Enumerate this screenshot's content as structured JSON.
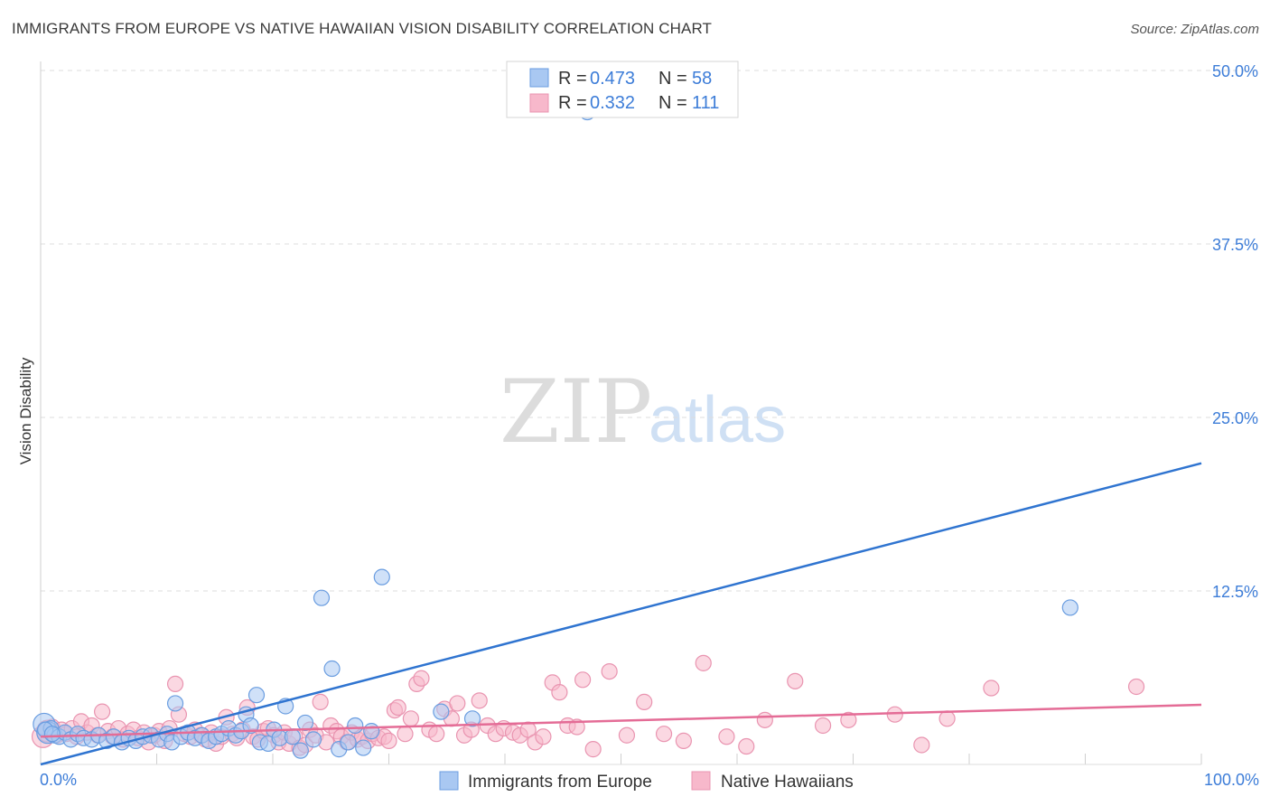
{
  "title": "IMMIGRANTS FROM EUROPE VS NATIVE HAWAIIAN VISION DISABILITY CORRELATION CHART",
  "source": "Source: ZipAtlas.com",
  "watermark": {
    "zip": "ZIP",
    "atlas": "atlas"
  },
  "legend": {
    "r_label": "R =",
    "n_label": "N =",
    "rows": [
      {
        "r": "0.473",
        "n": "58",
        "color": "#a9c8f2"
      },
      {
        "r": "0.332",
        "n": "111",
        "color": "#f7b8cb"
      }
    ]
  },
  "colors": {
    "blue_fill": "#a9c8f2",
    "blue_stroke": "#6a9de0",
    "blue_line": "#2f74d0",
    "pink_fill": "#f7b8cb",
    "pink_stroke": "#e994b0",
    "pink_line": "#e46c96",
    "tick_text": "#3d7dd8"
  },
  "chart_data": {
    "type": "scatter",
    "title": "IMMIGRANTS FROM EUROPE VS NATIVE HAWAIIAN VISION DISABILITY CORRELATION CHART",
    "xlabel": "",
    "ylabel": "Vision Disability",
    "xlim": [
      0,
      100
    ],
    "ylim": [
      0,
      50
    ],
    "x_tick_labels": [
      "0.0%",
      "100.0%"
    ],
    "y_ticks": [
      12.5,
      25.0,
      37.5,
      50.0
    ],
    "y_tick_labels": [
      "12.5%",
      "25.0%",
      "37.5%",
      "50.0%"
    ],
    "grid": true,
    "legend_position": "top-center",
    "series": [
      {
        "name": "Immigrants from Europe",
        "color": "#a9c8f2",
        "trendline": {
          "x": [
            0,
            100
          ],
          "y": [
            0.0,
            21.7
          ]
        },
        "points": [
          [
            0.3,
            2.9
          ],
          [
            0.6,
            2.3
          ],
          [
            0.9,
            2.6
          ],
          [
            1.2,
            2.1
          ],
          [
            1.6,
            2.0
          ],
          [
            2.1,
            2.3
          ],
          [
            2.6,
            1.8
          ],
          [
            3.2,
            2.2
          ],
          [
            3.7,
            1.9
          ],
          [
            4.4,
            1.8
          ],
          [
            5.0,
            2.1
          ],
          [
            5.7,
            1.7
          ],
          [
            6.3,
            2.0
          ],
          [
            7.0,
            1.6
          ],
          [
            7.6,
            1.9
          ],
          [
            8.2,
            1.7
          ],
          [
            8.8,
            2.0
          ],
          [
            9.5,
            2.1
          ],
          [
            10.2,
            1.8
          ],
          [
            10.9,
            2.2
          ],
          [
            11.3,
            1.6
          ],
          [
            11.6,
            4.4
          ],
          [
            12.1,
            2.0
          ],
          [
            12.7,
            2.3
          ],
          [
            13.3,
            1.9
          ],
          [
            13.9,
            2.1
          ],
          [
            14.5,
            1.7
          ],
          [
            15.1,
            2.0
          ],
          [
            15.6,
            2.2
          ],
          [
            16.2,
            2.6
          ],
          [
            16.8,
            2.1
          ],
          [
            17.3,
            2.4
          ],
          [
            17.7,
            3.6
          ],
          [
            18.1,
            2.8
          ],
          [
            18.6,
            5.0
          ],
          [
            18.9,
            1.6
          ],
          [
            19.6,
            1.5
          ],
          [
            20.1,
            2.5
          ],
          [
            20.6,
            1.9
          ],
          [
            21.1,
            4.2
          ],
          [
            21.7,
            2.0
          ],
          [
            22.4,
            1.0
          ],
          [
            22.8,
            3.0
          ],
          [
            23.5,
            1.8
          ],
          [
            24.2,
            12.0
          ],
          [
            25.1,
            6.9
          ],
          [
            25.7,
            1.1
          ],
          [
            26.5,
            1.6
          ],
          [
            27.1,
            2.8
          ],
          [
            27.8,
            1.2
          ],
          [
            28.5,
            2.4
          ],
          [
            29.4,
            13.5
          ],
          [
            34.5,
            3.8
          ],
          [
            37.2,
            3.3
          ],
          [
            47.1,
            47.0
          ],
          [
            88.7,
            11.3
          ],
          [
            0.4,
            2.5
          ],
          [
            1.0,
            2.2
          ]
        ]
      },
      {
        "name": "Native Hawaiians",
        "color": "#f7b8cb",
        "trendline": {
          "x": [
            0,
            100
          ],
          "y": [
            2.0,
            4.3
          ]
        },
        "points": [
          [
            0.2,
            2.0
          ],
          [
            0.6,
            2.4
          ],
          [
            1.0,
            2.7
          ],
          [
            1.4,
            2.1
          ],
          [
            1.8,
            2.5
          ],
          [
            2.2,
            2.2
          ],
          [
            2.7,
            2.6
          ],
          [
            3.1,
            2.0
          ],
          [
            3.5,
            3.1
          ],
          [
            4.0,
            2.3
          ],
          [
            4.4,
            2.8
          ],
          [
            4.9,
            2.1
          ],
          [
            5.3,
            3.8
          ],
          [
            5.8,
            2.4
          ],
          [
            6.2,
            2.0
          ],
          [
            6.7,
            2.6
          ],
          [
            7.1,
            1.8
          ],
          [
            7.5,
            2.2
          ],
          [
            8.0,
            2.5
          ],
          [
            8.4,
            1.9
          ],
          [
            8.9,
            2.3
          ],
          [
            9.3,
            1.6
          ],
          [
            9.8,
            2.1
          ],
          [
            10.2,
            2.4
          ],
          [
            10.7,
            1.7
          ],
          [
            11.1,
            2.6
          ],
          [
            11.6,
            5.8
          ],
          [
            11.9,
            3.6
          ],
          [
            12.4,
            2.2
          ],
          [
            12.9,
            2.0
          ],
          [
            13.3,
            2.5
          ],
          [
            13.8,
            2.1
          ],
          [
            14.2,
            1.8
          ],
          [
            14.7,
            2.3
          ],
          [
            15.1,
            1.5
          ],
          [
            15.6,
            2.0
          ],
          [
            16.0,
            3.4
          ],
          [
            16.5,
            2.2
          ],
          [
            16.9,
            1.9
          ],
          [
            17.4,
            2.5
          ],
          [
            17.8,
            4.1
          ],
          [
            18.3,
            2.0
          ],
          [
            18.7,
            1.8
          ],
          [
            19.2,
            2.4
          ],
          [
            19.6,
            2.6
          ],
          [
            20.1,
            2.1
          ],
          [
            20.5,
            1.6
          ],
          [
            21.0,
            2.3
          ],
          [
            21.4,
            1.5
          ],
          [
            21.9,
            2.0
          ],
          [
            22.3,
            1.2
          ],
          [
            22.8,
            1.4
          ],
          [
            23.2,
            2.5
          ],
          [
            23.7,
            2.1
          ],
          [
            24.1,
            4.5
          ],
          [
            24.6,
            1.6
          ],
          [
            25.0,
            2.8
          ],
          [
            25.5,
            2.4
          ],
          [
            25.9,
            2.0
          ],
          [
            26.4,
            1.6
          ],
          [
            26.8,
            2.3
          ],
          [
            27.3,
            1.8
          ],
          [
            27.7,
            2.0
          ],
          [
            28.2,
            1.7
          ],
          [
            28.6,
            2.2
          ],
          [
            29.1,
            1.9
          ],
          [
            29.6,
            2.0
          ],
          [
            30.0,
            1.7
          ],
          [
            30.5,
            3.9
          ],
          [
            30.8,
            4.1
          ],
          [
            31.4,
            2.2
          ],
          [
            31.9,
            3.3
          ],
          [
            32.4,
            5.8
          ],
          [
            32.8,
            6.2
          ],
          [
            33.5,
            2.5
          ],
          [
            34.1,
            2.2
          ],
          [
            34.8,
            4.0
          ],
          [
            35.4,
            3.3
          ],
          [
            35.9,
            4.4
          ],
          [
            36.5,
            2.1
          ],
          [
            37.1,
            2.5
          ],
          [
            37.8,
            4.6
          ],
          [
            38.5,
            2.8
          ],
          [
            39.2,
            2.2
          ],
          [
            39.9,
            2.6
          ],
          [
            40.7,
            2.3
          ],
          [
            41.3,
            2.1
          ],
          [
            42.0,
            2.5
          ],
          [
            42.6,
            1.6
          ],
          [
            43.3,
            2.0
          ],
          [
            44.1,
            5.9
          ],
          [
            44.7,
            5.2
          ],
          [
            45.4,
            2.8
          ],
          [
            46.2,
            2.7
          ],
          [
            46.7,
            6.1
          ],
          [
            47.6,
            1.1
          ],
          [
            49.0,
            6.7
          ],
          [
            50.5,
            2.1
          ],
          [
            52.0,
            4.5
          ],
          [
            53.7,
            2.2
          ],
          [
            55.4,
            1.7
          ],
          [
            57.1,
            7.3
          ],
          [
            59.1,
            2.0
          ],
          [
            60.8,
            1.3
          ],
          [
            62.4,
            3.2
          ],
          [
            65.0,
            6.0
          ],
          [
            67.4,
            2.8
          ],
          [
            69.6,
            3.2
          ],
          [
            73.6,
            3.6
          ],
          [
            75.9,
            1.4
          ],
          [
            78.1,
            3.3
          ],
          [
            81.9,
            5.5
          ],
          [
            94.4,
            5.6
          ]
        ]
      }
    ]
  },
  "bottom_legend": [
    {
      "label": "Immigrants from Europe",
      "color": "#a9c8f2"
    },
    {
      "label": "Native Hawaiians",
      "color": "#f7b8cb"
    }
  ]
}
